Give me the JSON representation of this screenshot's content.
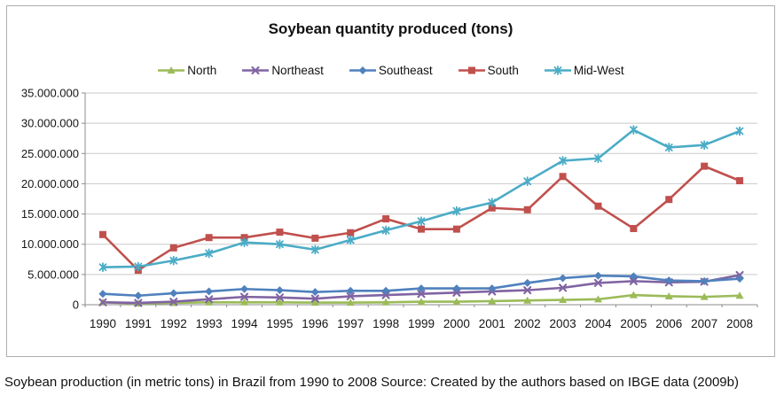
{
  "caption": "Soybean production (in metric tons) in Brazil from 1990 to 2008 Source: Created by the authors based on IBGE data (2009b)",
  "chart_data": {
    "type": "line",
    "title": "Soybean quantity produced (tons)",
    "xlabel": "",
    "ylabel": "",
    "ylim": [
      0,
      35000000
    ],
    "ytick_step": 5000000,
    "ytick_labels": [
      "0",
      "5.000.000",
      "10.000.000",
      "15.000.000",
      "20.000.000",
      "25.000.000",
      "30.000.000",
      "35.000.000"
    ],
    "grid": true,
    "legend_position": "top",
    "x": [
      1990,
      1991,
      1992,
      1993,
      1994,
      1995,
      1996,
      1997,
      1998,
      1999,
      2000,
      2001,
      2002,
      2003,
      2004,
      2005,
      2006,
      2007,
      2008
    ],
    "series": [
      {
        "name": "North",
        "color": "#9BBB59",
        "marker": "triangle",
        "values": [
          400000,
          200000,
          300000,
          400000,
          400000,
          400000,
          350000,
          350000,
          400000,
          500000,
          500000,
          600000,
          700000,
          800000,
          900000,
          1600000,
          1400000,
          1300000,
          1500000
        ]
      },
      {
        "name": "Northeast",
        "color": "#8064A2",
        "marker": "x",
        "values": [
          400000,
          300000,
          500000,
          900000,
          1300000,
          1200000,
          1000000,
          1400000,
          1600000,
          1800000,
          2000000,
          2200000,
          2400000,
          2800000,
          3600000,
          3900000,
          3700000,
          3800000,
          4900000
        ]
      },
      {
        "name": "Southeast",
        "color": "#4F81BD",
        "marker": "diamond",
        "values": [
          1800000,
          1500000,
          1900000,
          2200000,
          2600000,
          2400000,
          2100000,
          2300000,
          2300000,
          2700000,
          2700000,
          2700000,
          3600000,
          4400000,
          4800000,
          4700000,
          4000000,
          3900000,
          4300000
        ]
      },
      {
        "name": "South",
        "color": "#C0504D",
        "marker": "square",
        "values": [
          11600000,
          5700000,
          9400000,
          11100000,
          11100000,
          12000000,
          11000000,
          11900000,
          14200000,
          12500000,
          12500000,
          16000000,
          15700000,
          21200000,
          16300000,
          12600000,
          17400000,
          22900000,
          20500000
        ]
      },
      {
        "name": "Mid-West",
        "color": "#4BACC6",
        "marker": "star",
        "values": [
          6200000,
          6300000,
          7300000,
          8500000,
          10300000,
          10000000,
          9100000,
          10700000,
          12300000,
          13800000,
          15500000,
          16900000,
          20400000,
          23800000,
          24200000,
          28900000,
          26000000,
          26400000,
          28700000
        ]
      }
    ]
  }
}
